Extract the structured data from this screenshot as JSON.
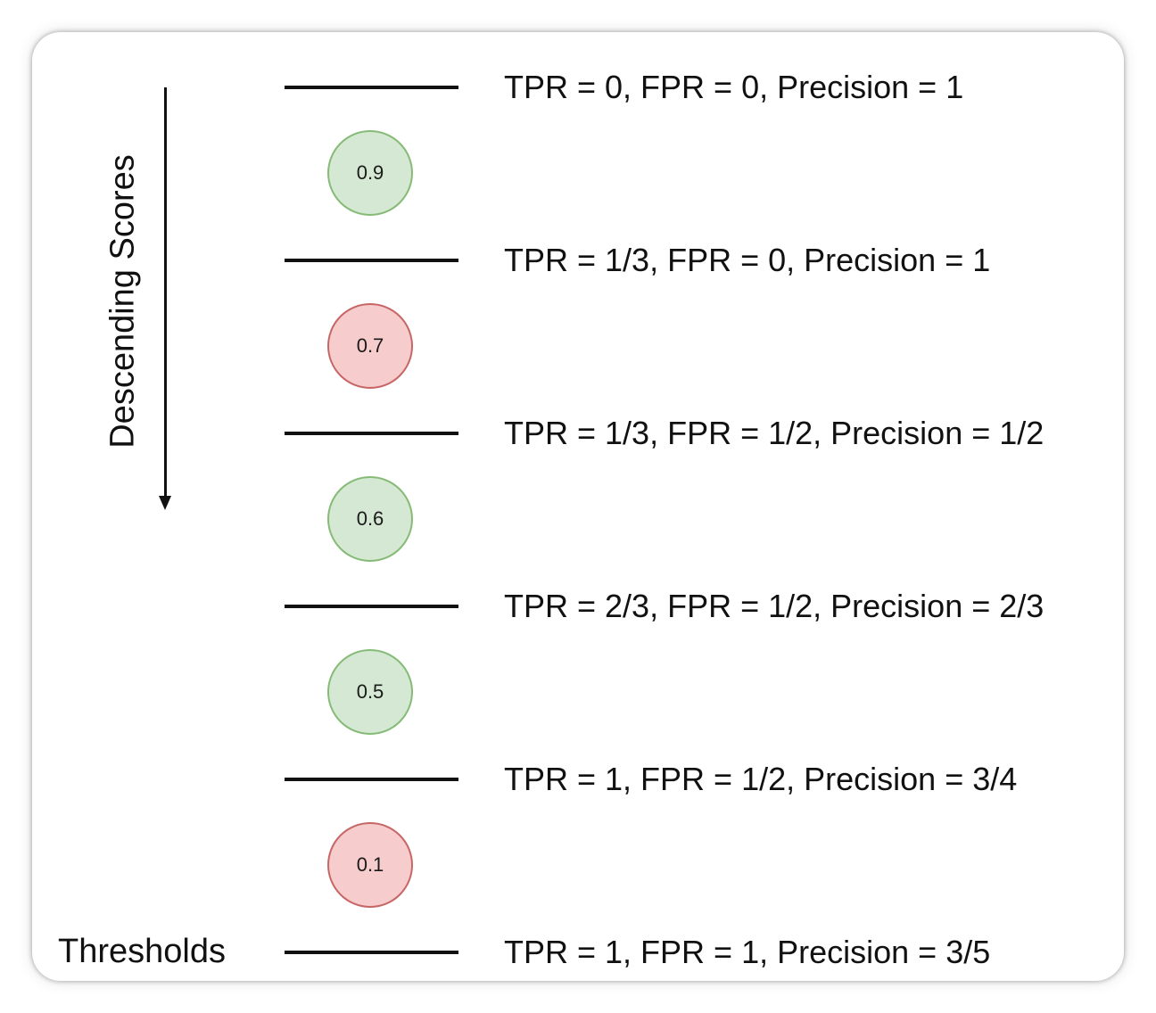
{
  "axis_label": "Descending Scores",
  "thresholds_label": "Thresholds",
  "thresholds": [
    {
      "metrics": "TPR = 0, FPR = 0, Precision = 1"
    },
    {
      "metrics": "TPR = 1/3, FPR = 0, Precision = 1"
    },
    {
      "metrics": "TPR = 1/3, FPR = 1/2, Precision = 1/2"
    },
    {
      "metrics": "TPR = 2/3, FPR = 1/2, Precision = 2/3"
    },
    {
      "metrics": "TPR = 1, FPR = 1/2, Precision = 3/4"
    },
    {
      "metrics": "TPR = 1, FPR = 1, Precision = 3/5"
    }
  ],
  "scores": [
    {
      "value": "0.9",
      "class": "positive"
    },
    {
      "value": "0.7",
      "class": "negative"
    },
    {
      "value": "0.6",
      "class": "positive"
    },
    {
      "value": "0.5",
      "class": "positive"
    },
    {
      "value": "0.1",
      "class": "negative"
    }
  ],
  "colors": {
    "positive_fill": "#d5e8d3",
    "positive_stroke": "#86bb77",
    "negative_fill": "#f7cccc",
    "negative_stroke": "#c76666"
  }
}
